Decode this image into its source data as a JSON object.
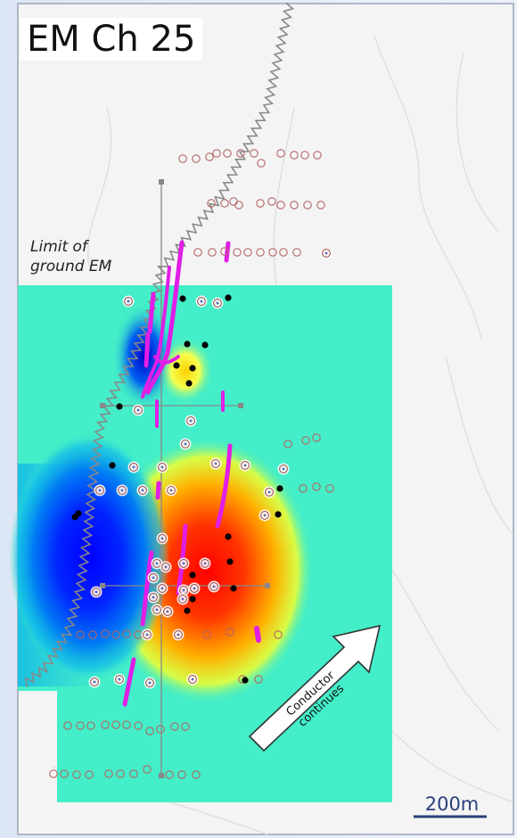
{
  "map": {
    "title": "EM Ch 25",
    "note_line1": "Limit of",
    "note_line2": "ground EM",
    "arrow_line1": "Conductor",
    "arrow_line2": "continues",
    "scale_label": "200m"
  },
  "colors": {
    "conductor": "#e01ee6",
    "river": "#888888",
    "grid_line": "#888888",
    "sample_ring": "#b46464",
    "sample_ring_blue": "#6a6ab8",
    "drillhole": "#000000",
    "scale_bar": "#2a3f7a",
    "anomaly_high": "#ff0000",
    "anomaly_low": "#0000ff",
    "background_field": "#43eec8"
  },
  "legend": {
    "map_elements": [
      "em-survey-grid",
      "river-icon",
      "conductor-trace",
      "drillhole-marker",
      "sample-station-marker",
      "scale-bar"
    ]
  }
}
